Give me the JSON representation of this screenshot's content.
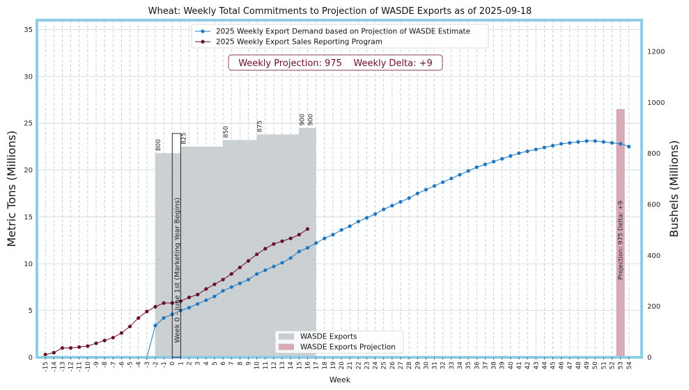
{
  "chart_data": {
    "type": "line",
    "title": "Wheat: Weekly Total Commitments to Projection of WASDE Exports as of 2025-09-18",
    "xlabel": "Week",
    "ylabel": "Metric Tons (Millions)",
    "y2label": "Bushels (Millions)",
    "xlim": [
      -15,
      54
    ],
    "ylim": [
      0,
      36
    ],
    "y2lim": [
      0,
      1323
    ],
    "x_ticks": [
      -15,
      -14,
      -13,
      -12,
      -11,
      -10,
      -9,
      -8,
      -7,
      -6,
      -5,
      -4,
      -3,
      -2,
      -1,
      0,
      1,
      2,
      3,
      4,
      5,
      6,
      7,
      8,
      9,
      10,
      11,
      12,
      13,
      14,
      15,
      16,
      17,
      18,
      19,
      20,
      21,
      22,
      23,
      24,
      25,
      26,
      27,
      28,
      29,
      30,
      31,
      32,
      33,
      34,
      35,
      36,
      37,
      38,
      39,
      40,
      41,
      42,
      43,
      44,
      45,
      46,
      47,
      48,
      49,
      50,
      51,
      52,
      53,
      54
    ],
    "y_ticks": [
      0,
      5,
      10,
      15,
      20,
      25,
      30,
      35
    ],
    "y2_ticks": [
      0,
      200,
      400,
      600,
      800,
      1000,
      1200
    ],
    "grid": true,
    "legend_top": {
      "placement": "top-center",
      "entries": [
        {
          "label": "2025 Weekly Export Demand based on Projection of WASDE Estimate",
          "color": "#1f77c4"
        },
        {
          "label": "2025 Weekly Export Sales Reporting Program",
          "color": "#6b0f2a"
        }
      ]
    },
    "legend_bottom": {
      "placement": "bottom-center",
      "entries": [
        {
          "label": "WASDE Exports",
          "color": "#c8cdd1"
        },
        {
          "label": "WASDE Exports Projection",
          "color": "#d8aab6"
        }
      ]
    },
    "annotation": {
      "projection_label": "Weekly Projection:",
      "projection_value": "975",
      "delta_label": "Weekly Delta:",
      "delta_value": "+9"
    },
    "marketing_year_label": "Week 0 - June 1st (Marketing Year Begins)",
    "wasde_bars": [
      {
        "x_start": -2,
        "x_end": 1,
        "value_mt": 21.8,
        "label": "800"
      },
      {
        "x_start": 1,
        "x_end": 6,
        "value_mt": 22.5,
        "label": "825"
      },
      {
        "x_start": 6,
        "x_end": 10,
        "value_mt": 23.2,
        "label": "850"
      },
      {
        "x_start": 10,
        "x_end": 15,
        "value_mt": 23.8,
        "label": "875"
      },
      {
        "x_start": 15,
        "x_end": 16,
        "value_mt": 24.5,
        "label": "900"
      },
      {
        "x_start": 16,
        "x_end": 17,
        "value_mt": 24.5,
        "label": "900"
      }
    ],
    "projection_bar": {
      "x": 53,
      "value_mt": 26.5,
      "label": "Projection: 975    Delta: +9"
    },
    "series": [
      {
        "name": "2025 Weekly Export Demand based on Projection of WASDE Estimate",
        "color": "#1f77c4",
        "x": [
          -3,
          -2,
          -1,
          0,
          1,
          2,
          3,
          4,
          5,
          6,
          7,
          8,
          9,
          10,
          11,
          12,
          13,
          14,
          15,
          16,
          17,
          18,
          19,
          20,
          21,
          22,
          23,
          24,
          25,
          26,
          27,
          28,
          29,
          30,
          31,
          32,
          33,
          34,
          35,
          36,
          37,
          38,
          39,
          40,
          41,
          42,
          43,
          44,
          45,
          46,
          47,
          48,
          49,
          50,
          51,
          52,
          53,
          54
        ],
        "y": [
          0,
          3.4,
          4.2,
          4.6,
          5.0,
          5.3,
          5.7,
          6.1,
          6.5,
          7.1,
          7.5,
          7.9,
          8.3,
          8.9,
          9.3,
          9.7,
          10.1,
          10.6,
          11.3,
          11.7,
          12.2,
          12.7,
          13.1,
          13.6,
          14.0,
          14.5,
          14.9,
          15.3,
          15.8,
          16.2,
          16.6,
          17.0,
          17.5,
          17.9,
          18.3,
          18.7,
          19.1,
          19.5,
          19.9,
          20.3,
          20.6,
          20.9,
          21.2,
          21.5,
          21.8,
          22.0,
          22.2,
          22.4,
          22.6,
          22.8,
          22.9,
          23.0,
          23.1,
          23.1,
          23.0,
          22.9,
          22.8,
          22.5
        ]
      },
      {
        "name": "2025 Weekly Export Sales Reporting Program",
        "color": "#6b0f2a",
        "x": [
          -15,
          -14,
          -13,
          -12,
          -11,
          -10,
          -9,
          -8,
          -7,
          -6,
          -5,
          -4,
          -3,
          -2,
          -1,
          0,
          1,
          2,
          3,
          4,
          5,
          6,
          7,
          8,
          9,
          10,
          11,
          12,
          13,
          14,
          15,
          16
        ],
        "y": [
          0.3,
          0.5,
          1.0,
          1.0,
          1.1,
          1.2,
          1.5,
          1.8,
          2.1,
          2.6,
          3.3,
          4.2,
          4.9,
          5.4,
          5.8,
          5.8,
          6.0,
          6.4,
          6.7,
          7.3,
          7.8,
          8.3,
          8.9,
          9.6,
          10.3,
          11.0,
          11.6,
          12.1,
          12.4,
          12.7,
          13.1,
          13.7
        ]
      }
    ]
  }
}
